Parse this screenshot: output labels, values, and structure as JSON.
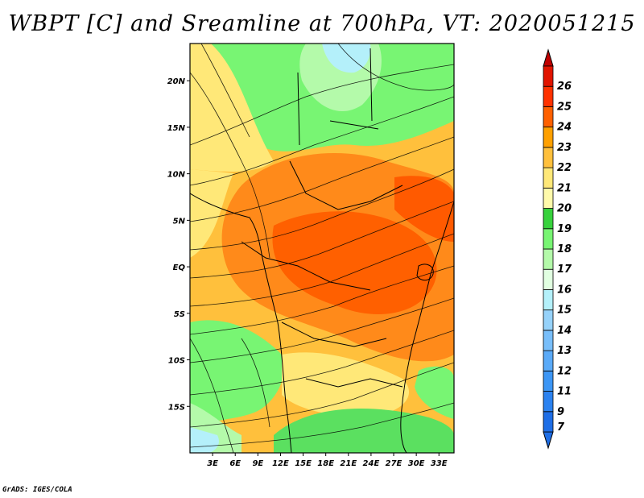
{
  "title": "WBPT [C] and Sreamline at 700hPa, VT: 2020051215",
  "credit": "GrADS: IGES/COLA",
  "map": {
    "lon_range": [
      0,
      35
    ],
    "lat_range": [
      -20,
      24
    ],
    "lon_ticks": [
      {
        "value": 3,
        "label": "3E"
      },
      {
        "value": 6,
        "label": "6E"
      },
      {
        "value": 9,
        "label": "9E"
      },
      {
        "value": 12,
        "label": "12E"
      },
      {
        "value": 15,
        "label": "15E"
      },
      {
        "value": 18,
        "label": "18E"
      },
      {
        "value": 21,
        "label": "21E"
      },
      {
        "value": 24,
        "label": "24E"
      },
      {
        "value": 27,
        "label": "27E"
      },
      {
        "value": 30,
        "label": "30E"
      },
      {
        "value": 33,
        "label": "33E"
      }
    ],
    "lat_ticks": [
      {
        "value": 20,
        "label": "20N"
      },
      {
        "value": 15,
        "label": "15N"
      },
      {
        "value": 10,
        "label": "10N"
      },
      {
        "value": 5,
        "label": "5N"
      },
      {
        "value": 0,
        "label": "EQ"
      },
      {
        "value": -5,
        "label": "5S"
      },
      {
        "value": -10,
        "label": "10S"
      },
      {
        "value": -15,
        "label": "15S"
      }
    ]
  },
  "colorbar": {
    "levels": [
      {
        "label": "7",
        "color": "#1e6ee6"
      },
      {
        "label": "9",
        "color": "#2b82f0"
      },
      {
        "label": "11",
        "color": "#3c96f5"
      },
      {
        "label": "12",
        "color": "#5aaaf8"
      },
      {
        "label": "13",
        "color": "#78befa"
      },
      {
        "label": "14",
        "color": "#96d2fa"
      },
      {
        "label": "15",
        "color": "#b4f0fa"
      },
      {
        "label": "16",
        "color": "#e1ffe1"
      },
      {
        "label": "17",
        "color": "#b4faaa"
      },
      {
        "label": "18",
        "color": "#78f573"
      },
      {
        "label": "19",
        "color": "#37d23c"
      },
      {
        "label": "20",
        "color": "#fffaaa"
      },
      {
        "label": "21",
        "color": "#ffe878"
      },
      {
        "label": "22",
        "color": "#ffc03c"
      },
      {
        "label": "23",
        "color": "#ffa000"
      },
      {
        "label": "24",
        "color": "#ff6000"
      },
      {
        "label": "25",
        "color": "#ff3200"
      },
      {
        "label": "26",
        "color": "#e11400"
      }
    ],
    "top_color": "#c00000"
  }
}
